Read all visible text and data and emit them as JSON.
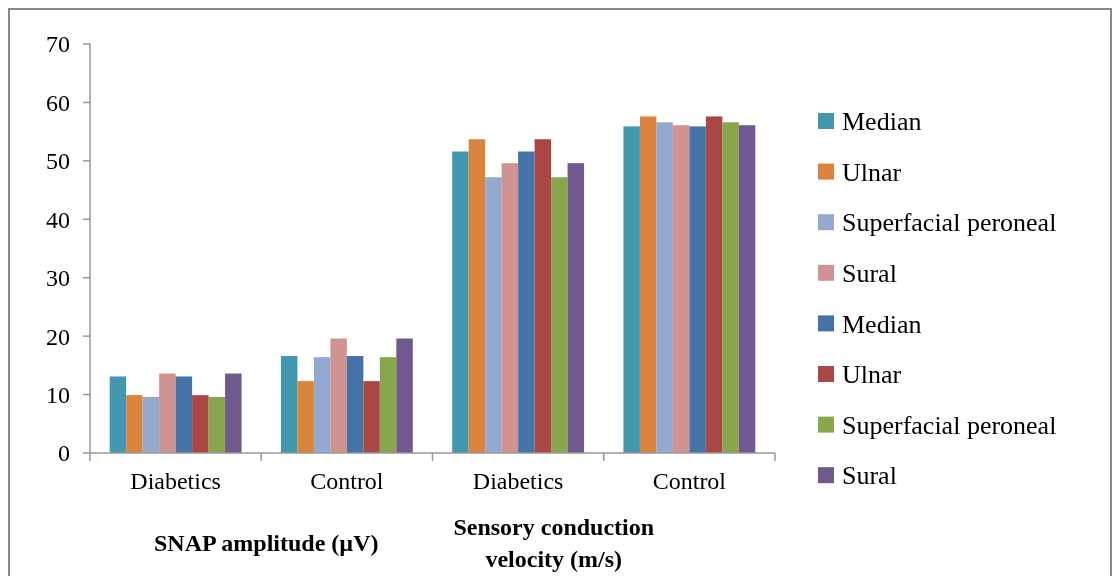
{
  "chart_data": {
    "type": "bar",
    "categories": [
      "Diabetics",
      "Control",
      "Diabetics",
      "Control"
    ],
    "series": [
      {
        "name": "Median",
        "color": "#4198af",
        "values": [
          13.1,
          16.6,
          51.6,
          55.9
        ]
      },
      {
        "name": "Ulnar",
        "color": "#db843d",
        "values": [
          9.9,
          12.3,
          53.7,
          57.6
        ]
      },
      {
        "name": "Superfacial peroneal",
        "color": "#93a9cf",
        "values": [
          9.6,
          16.4,
          47.2,
          56.6
        ]
      },
      {
        "name": "Sural",
        "color": "#d19392",
        "values": [
          13.6,
          19.6,
          49.6,
          56.1
        ]
      },
      {
        "name": "Median",
        "color": "#4572a7",
        "values": [
          13.1,
          16.6,
          51.6,
          55.9
        ]
      },
      {
        "name": "Ulnar",
        "color": "#aa4643",
        "values": [
          9.9,
          12.3,
          53.7,
          57.6
        ]
      },
      {
        "name": "Superfacial peroneal",
        "color": "#89a54e",
        "values": [
          9.6,
          16.4,
          47.2,
          56.6
        ]
      },
      {
        "name": "Sural",
        "color": "#71588f",
        "values": [
          13.6,
          19.6,
          49.6,
          56.1
        ]
      }
    ],
    "annotations": [
      "SNAP amplitude (µV)",
      "Sensory conduction velocity (m/s)"
    ],
    "ylim": [
      0,
      70
    ],
    "yticks": [
      0,
      10,
      20,
      30,
      40,
      50,
      60,
      70
    ],
    "grid": false,
    "legend": "right"
  }
}
